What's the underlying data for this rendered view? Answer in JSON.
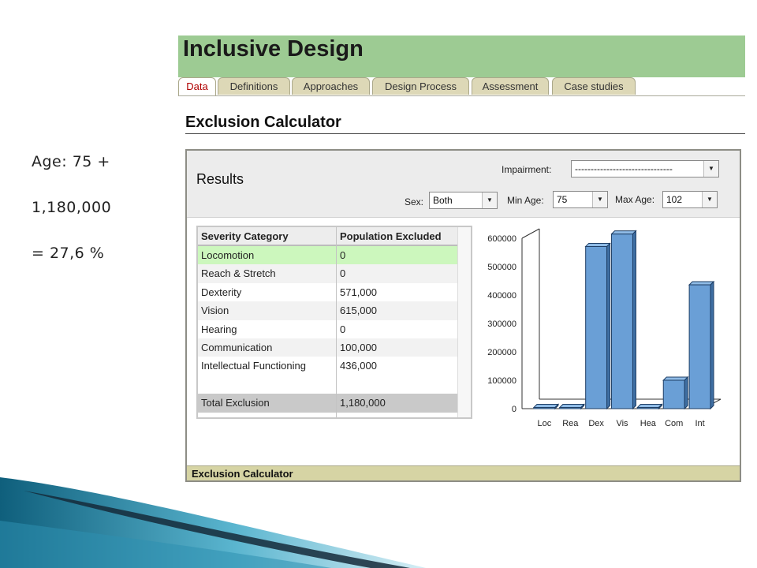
{
  "notes": [
    "Age: 75 +",
    "1,180,000",
    "= 27,6 %"
  ],
  "header": {
    "title": "Inclusive Design"
  },
  "tabs": [
    "Data",
    "Definitions",
    "Approaches",
    "Design Process",
    "Assessment",
    "Case studies"
  ],
  "active_tab": "Data",
  "page_title": "Exclusion Calculator",
  "panel": {
    "results_title": "Results",
    "impairment": {
      "label": "Impairment:",
      "value": "-------------------------------"
    },
    "sex": {
      "label": "Sex:",
      "value": "Both"
    },
    "min_age": {
      "label": "Min Age:",
      "value": "75"
    },
    "max_age": {
      "label": "Max Age:",
      "value": "102"
    },
    "status_bar": "Exclusion Calculator"
  },
  "table": {
    "headers": [
      "Severity Category",
      "Population Excluded"
    ],
    "rows": [
      [
        "Locomotion",
        "0"
      ],
      [
        "Reach & Stretch",
        "0"
      ],
      [
        "Dexterity",
        "571,000"
      ],
      [
        "Vision",
        "615,000"
      ],
      [
        "Hearing",
        "0"
      ],
      [
        "Communication",
        "100,000"
      ],
      [
        "Intellectual Functioning",
        "436,000"
      ]
    ],
    "total": [
      "Total Exclusion",
      "1,180,000"
    ]
  },
  "chart_data": {
    "type": "bar",
    "categories": [
      "Loc",
      "Rea",
      "Dex",
      "Vis",
      "Hea",
      "Com",
      "Int"
    ],
    "values": [
      0,
      0,
      571000,
      615000,
      0,
      100000,
      436000
    ],
    "y_ticks": [
      "600000",
      "500000",
      "400000",
      "300000",
      "200000",
      "100000",
      "0"
    ],
    "ylim": [
      0,
      600000
    ],
    "bar_color": "#6a9fd6",
    "title": "",
    "xlabel": "",
    "ylabel": ""
  },
  "colors": {
    "header_green": "#9dcb93",
    "tab_tan": "#ddd8b7",
    "selected_row": "#ccf7bd",
    "status_bar": "#d6d4a4"
  }
}
